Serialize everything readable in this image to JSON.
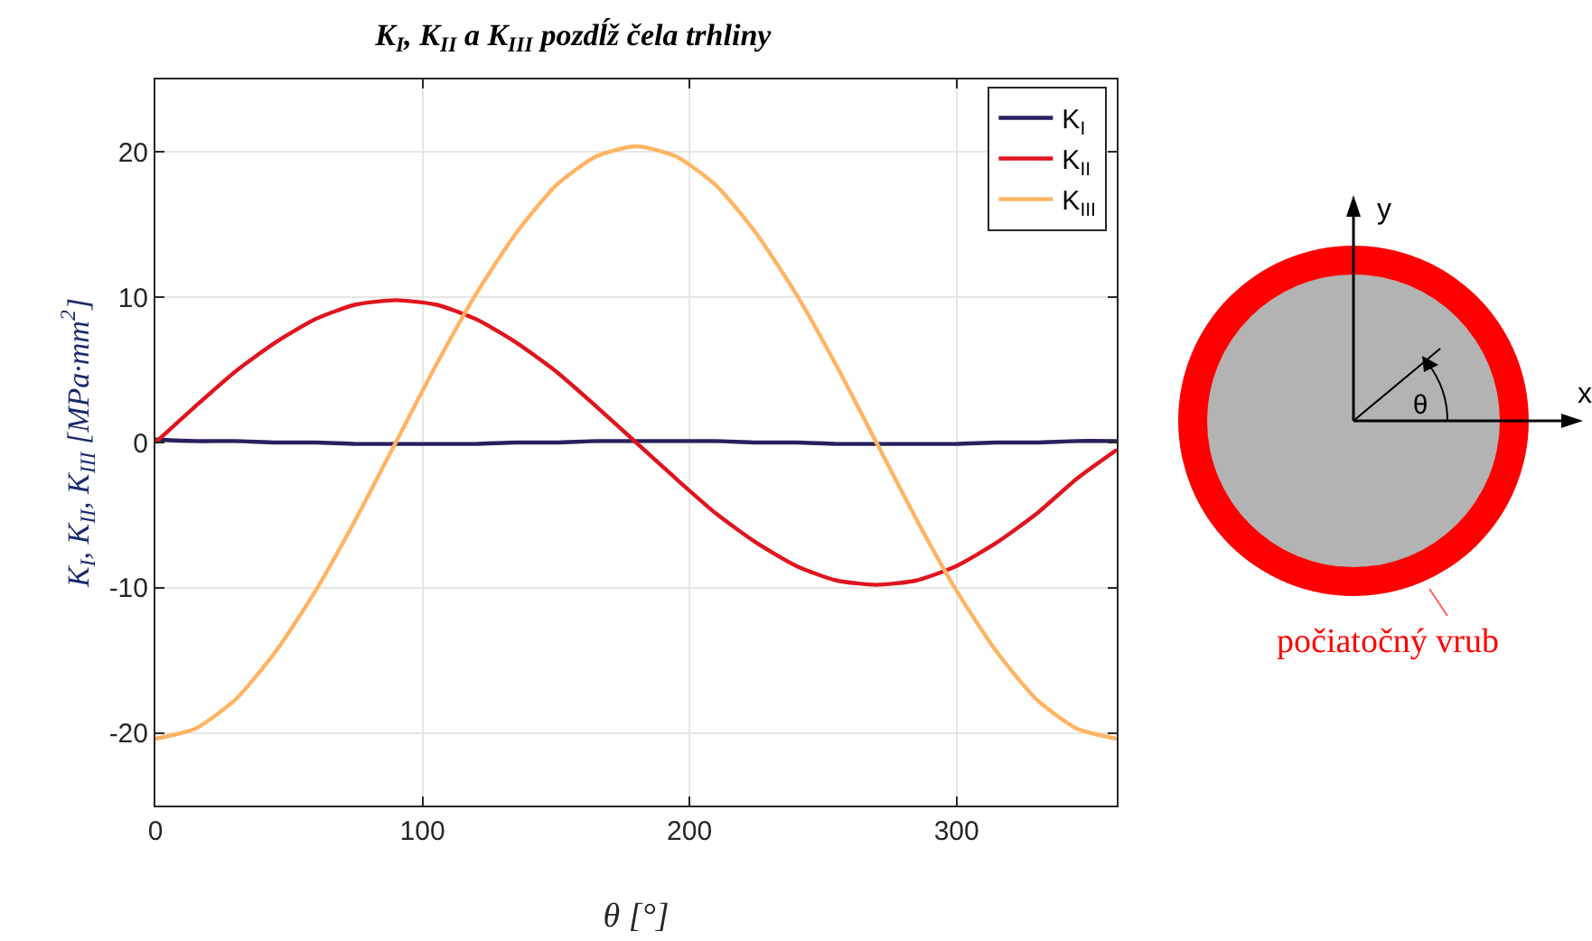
{
  "chart_data": {
    "type": "line",
    "title": "K$_{I}$, K$_{II}$ a K$_{III}$ pozdĺž čela trhliny",
    "xlabel": "θ [°]",
    "ylabel": "K$_{I}$, K$_{II}$, K$_{III}$ [MPa·mm$^{2}$]",
    "x": [
      0,
      15,
      30,
      45,
      60,
      75,
      90,
      105,
      120,
      135,
      150,
      165,
      180,
      195,
      210,
      225,
      240,
      255,
      270,
      285,
      300,
      315,
      330,
      345,
      360
    ],
    "series": [
      {
        "name": "K$_{I}$",
        "color": "#26215e",
        "values": [
          0.2,
          0.1,
          0.1,
          0,
          0,
          -0.1,
          -0.1,
          -0.1,
          -0.1,
          0,
          0,
          0.1,
          0.1,
          0.1,
          0.1,
          0,
          0,
          -0.1,
          -0.1,
          -0.1,
          -0.1,
          0,
          0,
          0.1,
          0.1
        ]
      },
      {
        "name": "K$_{II}$",
        "color": "#e0141e",
        "values": [
          0,
          2.5,
          4.9,
          6.9,
          8.5,
          9.5,
          9.8,
          9.5,
          8.5,
          6.9,
          4.9,
          2.5,
          0,
          -2.5,
          -4.9,
          -6.9,
          -8.5,
          -9.5,
          -9.8,
          -9.5,
          -8.5,
          -6.9,
          -4.9,
          -2.5,
          -0.5
        ]
      },
      {
        "name": "K$_{III}$",
        "color": "#ffb463",
        "values": [
          -20.4,
          -19.7,
          -17.7,
          -14.4,
          -10.2,
          -5.3,
          0,
          5.3,
          10.2,
          14.4,
          17.7,
          19.7,
          20.4,
          19.7,
          17.7,
          14.4,
          10.2,
          5.3,
          0,
          -5.3,
          -10.2,
          -14.4,
          -17.7,
          -19.7,
          -20.4
        ]
      }
    ],
    "xlim": [
      0,
      360
    ],
    "xticks": [
      0,
      100,
      200,
      300
    ],
    "ylim": [
      -25,
      25
    ],
    "yticks": [
      -20,
      -10,
      0,
      10,
      20
    ],
    "grid": true,
    "legend": "top right",
    "marker": "none",
    "line_style": "solid",
    "annotations": [
      "y",
      "x",
      "θ",
      "počiatočný vrub"
    ]
  }
}
